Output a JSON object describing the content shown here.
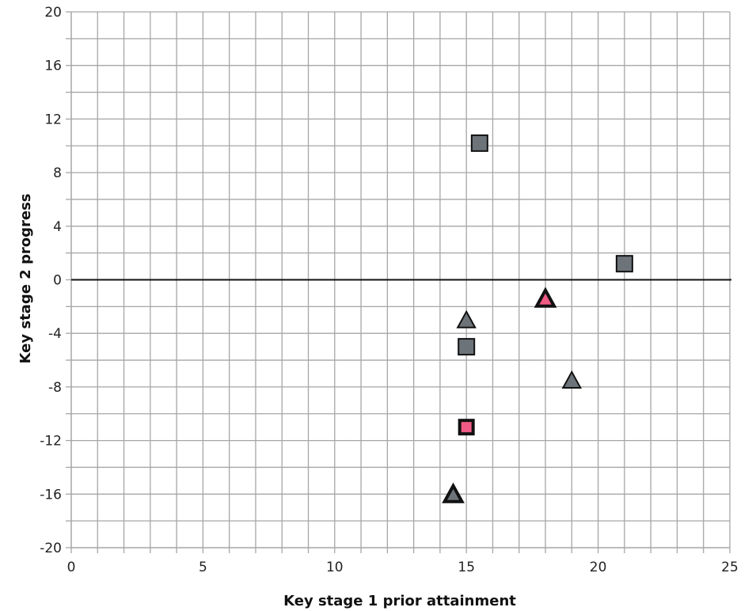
{
  "chart_data": {
    "type": "scatter",
    "title": "",
    "xlabel": "Key stage 1 prior attainment",
    "ylabel": "Key stage 2 progress",
    "xlim": [
      0,
      25
    ],
    "ylim": [
      -20,
      20
    ],
    "x_ticks": [
      0,
      5,
      10,
      15,
      20,
      25
    ],
    "y_ticks": [
      -20,
      -16,
      -12,
      -8,
      -4,
      0,
      4,
      8,
      12,
      16,
      20
    ],
    "x_tick_labels": [
      "0",
      "5",
      "10",
      "15",
      "20",
      "25"
    ],
    "y_tick_labels": [
      "-20",
      "-16",
      "-12",
      "-8",
      "-4",
      "0",
      "4",
      "8",
      "12",
      "16",
      "20"
    ],
    "grid": true,
    "reference_line_y": 0,
    "colors": {
      "grey": "#6d7479",
      "pink": "#ef5b84",
      "outline": "#111111",
      "grid": "#a6a6a6"
    },
    "points": [
      {
        "x": 15.5,
        "y": 10.2,
        "marker": "square",
        "color": "grey",
        "bold_outline": false
      },
      {
        "x": 21.0,
        "y": 1.2,
        "marker": "square",
        "color": "grey",
        "bold_outline": false
      },
      {
        "x": 18.0,
        "y": -1.4,
        "marker": "triangle",
        "color": "pink",
        "bold_outline": true
      },
      {
        "x": 15.0,
        "y": -3.0,
        "marker": "triangle",
        "color": "grey",
        "bold_outline": false
      },
      {
        "x": 15.0,
        "y": -5.0,
        "marker": "square",
        "color": "grey",
        "bold_outline": false
      },
      {
        "x": 19.0,
        "y": -7.5,
        "marker": "triangle",
        "color": "grey",
        "bold_outline": false
      },
      {
        "x": 15.0,
        "y": -11.0,
        "marker": "square",
        "color": "pink",
        "bold_outline": true
      },
      {
        "x": 14.5,
        "y": -16.0,
        "marker": "triangle",
        "color": "grey",
        "bold_outline": true
      }
    ]
  }
}
